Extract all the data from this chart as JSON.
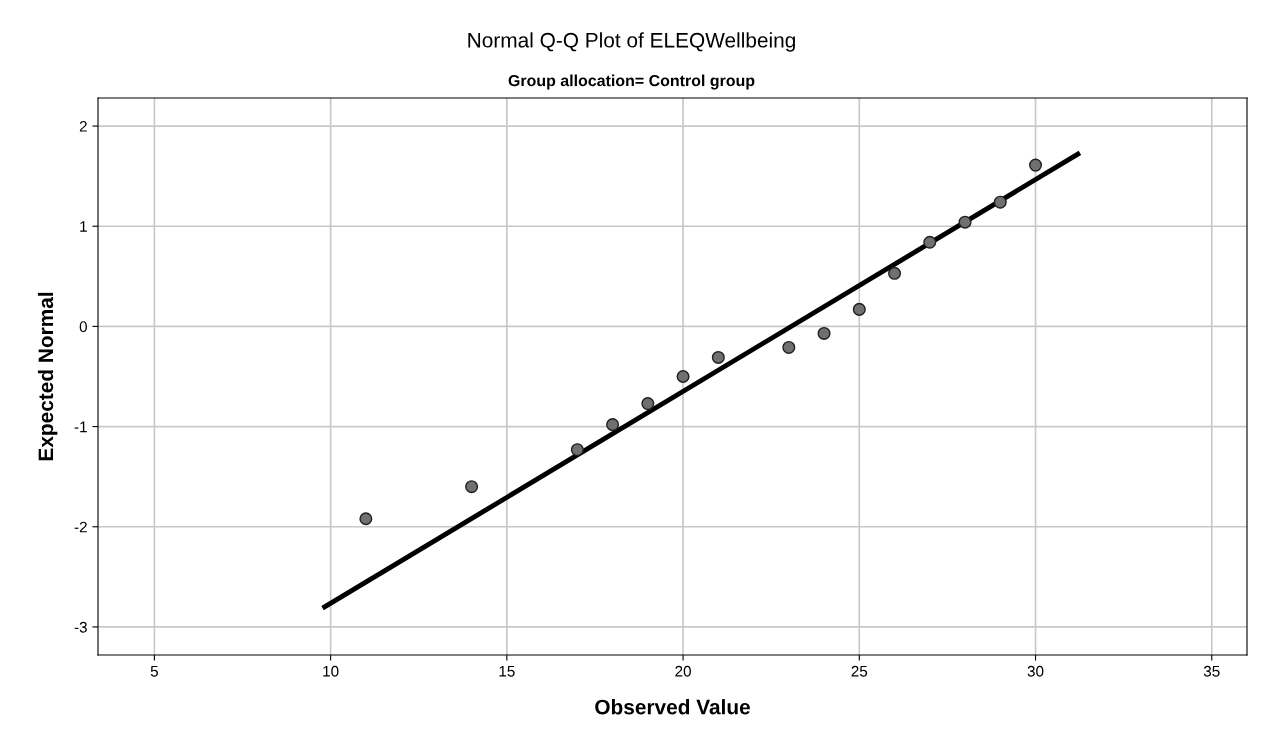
{
  "chart_data": {
    "type": "scatter",
    "title": "Normal Q-Q Plot of ELEQWellbeing",
    "subtitle": "Group allocation= Control group",
    "xlabel": "Observed Value",
    "ylabel": "Expected Normal",
    "series": [
      {
        "marker": "circle",
        "color": "#707070",
        "x": [
          11,
          14,
          17,
          18,
          19,
          20,
          21,
          23,
          24,
          25,
          26,
          27,
          28,
          29,
          30
        ],
        "values": [
          -1.92,
          -1.6,
          -1.23,
          -0.98,
          -0.77,
          -0.5,
          -0.31,
          -0.21,
          -0.07,
          0.17,
          0.53,
          0.84,
          1.04,
          1.24,
          1.61
        ]
      },
      {
        "type": "line",
        "line_style": "solid",
        "color": "#000000",
        "x": [
          9.83,
          31.2
        ],
        "values": [
          -2.8,
          1.72
        ]
      }
    ],
    "xlim": [
      3.4,
      36
    ],
    "ylim": [
      -3.28,
      2.28
    ],
    "xticks": [
      5,
      10,
      15,
      20,
      25,
      30,
      35
    ],
    "yticks": [
      -3,
      -2,
      -1,
      0,
      1,
      2
    ],
    "grid": true
  }
}
